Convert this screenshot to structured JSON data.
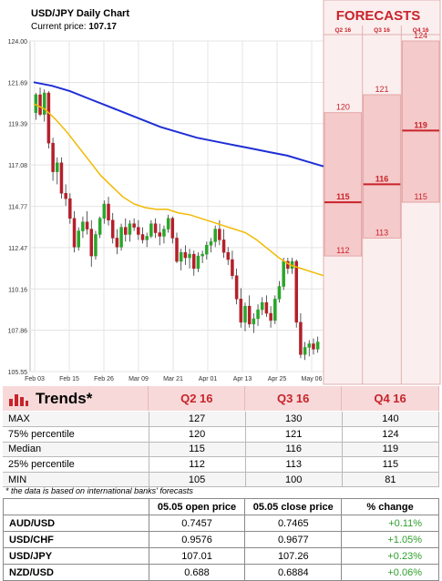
{
  "header": {
    "title": "USD/JPY Daily Chart",
    "price_label": "Current price:",
    "price_value": "107.17"
  },
  "forecast_panel": {
    "title": "FORECASTS",
    "columns": [
      "Q2 16",
      "Q3 16",
      "Q4 16"
    ],
    "values": [
      {
        "max": "120",
        "median": "115",
        "min": "112",
        "max_v": 120,
        "median_v": 115,
        "min_v": 112
      },
      {
        "max": "121",
        "median": "116",
        "min": "113",
        "max_v": 121,
        "median_v": 116,
        "min_v": 113
      },
      {
        "max": "124",
        "median": "119",
        "min": "115",
        "max_v": 124,
        "median_v": 119,
        "min_v": 115
      }
    ]
  },
  "chart_data": {
    "type": "candlestick",
    "title": "USD/JPY Daily Chart",
    "ylim": [
      105.55,
      124.0
    ],
    "y_ticks": [
      "124.00",
      "121.69",
      "119.39",
      "117.08",
      "114.77",
      "112.47",
      "110.16",
      "107.86",
      "105.55"
    ],
    "x_ticks": [
      "Feb 03",
      "Feb 15",
      "Feb 26",
      "Mar 09",
      "Mar 21",
      "Apr 01",
      "Apr 13",
      "Apr 25",
      "May 06"
    ],
    "candles": [
      [
        120.0,
        121.1,
        119.6,
        121.0
      ],
      [
        121.0,
        121.4,
        119.8,
        119.9
      ],
      [
        119.9,
        121.3,
        119.5,
        121.1
      ],
      [
        121.1,
        121.2,
        118.0,
        118.3
      ],
      [
        118.3,
        118.6,
        116.2,
        116.7
      ],
      [
        116.7,
        117.5,
        116.0,
        117.2
      ],
      [
        117.2,
        117.5,
        115.2,
        115.5
      ],
      [
        115.5,
        116.0,
        114.8,
        115.2
      ],
      [
        115.2,
        115.5,
        113.8,
        114.1
      ],
      [
        114.1,
        114.5,
        112.2,
        112.5
      ],
      [
        112.5,
        113.6,
        112.3,
        113.4
      ],
      [
        113.4,
        114.2,
        113.0,
        113.9
      ],
      [
        113.9,
        114.5,
        113.2,
        113.5
      ],
      [
        113.5,
        114.0,
        111.4,
        112.0
      ],
      [
        112.0,
        113.4,
        111.8,
        113.2
      ],
      [
        113.2,
        114.2,
        113.0,
        114.1
      ],
      [
        114.1,
        115.1,
        113.8,
        114.9
      ],
      [
        114.9,
        115.3,
        113.7,
        114.0
      ],
      [
        114.0,
        114.4,
        112.7,
        113.0
      ],
      [
        113.0,
        113.5,
        112.1,
        112.5
      ],
      [
        112.5,
        113.8,
        112.3,
        113.6
      ],
      [
        113.6,
        114.1,
        112.8,
        113.2
      ],
      [
        113.2,
        114.0,
        112.8,
        113.8
      ],
      [
        113.8,
        114.1,
        113.4,
        113.6
      ],
      [
        113.6,
        114.0,
        112.9,
        113.2
      ],
      [
        113.2,
        113.6,
        112.7,
        112.9
      ],
      [
        112.9,
        113.3,
        112.5,
        113.1
      ],
      [
        113.1,
        114.0,
        113.0,
        113.8
      ],
      [
        113.8,
        114.1,
        113.0,
        113.3
      ],
      [
        113.3,
        113.8,
        112.6,
        113.1
      ],
      [
        113.1,
        113.7,
        112.7,
        113.5
      ],
      [
        113.5,
        114.3,
        113.3,
        114.1
      ],
      [
        114.1,
        114.2,
        112.7,
        113.0
      ],
      [
        113.0,
        113.3,
        111.6,
        111.7
      ],
      [
        111.7,
        112.4,
        111.2,
        112.2
      ],
      [
        112.2,
        112.6,
        111.5,
        111.9
      ],
      [
        111.9,
        112.4,
        111.3,
        112.1
      ],
      [
        112.1,
        112.3,
        110.9,
        111.3
      ],
      [
        111.3,
        112.2,
        111.1,
        112.0
      ],
      [
        112.0,
        112.3,
        111.6,
        112.1
      ],
      [
        112.1,
        112.8,
        111.8,
        112.6
      ],
      [
        112.6,
        113.0,
        112.2,
        112.8
      ],
      [
        112.8,
        113.7,
        112.5,
        113.5
      ],
      [
        113.5,
        114.0,
        112.6,
        112.9
      ],
      [
        112.9,
        113.5,
        111.9,
        112.2
      ],
      [
        112.2,
        112.5,
        111.5,
        111.8
      ],
      [
        111.8,
        112.3,
        110.7,
        110.9
      ],
      [
        110.9,
        111.3,
        109.3,
        109.6
      ],
      [
        109.6,
        110.2,
        108.0,
        108.3
      ],
      [
        108.3,
        109.4,
        107.8,
        109.2
      ],
      [
        109.2,
        109.8,
        108.0,
        108.2
      ],
      [
        108.2,
        108.8,
        107.7,
        108.5
      ],
      [
        108.5,
        109.3,
        108.1,
        109.0
      ],
      [
        109.0,
        109.7,
        108.7,
        109.4
      ],
      [
        109.4,
        109.8,
        108.6,
        108.8
      ],
      [
        108.8,
        109.2,
        108.0,
        108.4
      ],
      [
        108.4,
        109.8,
        108.2,
        109.6
      ],
      [
        109.6,
        110.6,
        109.4,
        110.3
      ],
      [
        110.3,
        111.9,
        110.1,
        111.7
      ],
      [
        111.7,
        111.9,
        111.0,
        111.3
      ],
      [
        111.3,
        111.9,
        111.0,
        111.7
      ],
      [
        111.7,
        111.8,
        108.0,
        108.3
      ],
      [
        108.3,
        108.8,
        106.3,
        106.5
      ],
      [
        106.5,
        107.2,
        106.2,
        106.9
      ],
      [
        106.9,
        107.3,
        106.4,
        107.1
      ],
      [
        107.1,
        107.4,
        106.5,
        106.8
      ],
      [
        106.8,
        107.5,
        106.6,
        107.2
      ]
    ],
    "sma_short": [
      120.5,
      120.2,
      119.6,
      118.9,
      118.1,
      117.3,
      116.5,
      115.9,
      115.3,
      114.9,
      114.7,
      114.6,
      114.6,
      114.4,
      114.3,
      114.1,
      113.9,
      113.7,
      113.5,
      113.3,
      112.9,
      112.4,
      111.9,
      111.5,
      111.3,
      111.1,
      110.9
    ],
    "sma_long": [
      121.7,
      121.5,
      121.2,
      120.8,
      120.4,
      120.0,
      119.6,
      119.2,
      118.9,
      118.6,
      118.4,
      118.2,
      118.0,
      117.8,
      117.6,
      117.3,
      117.0
    ],
    "sma_colors": {
      "short": "#f2b900",
      "long": "#1f2fd4"
    },
    "candle_colors": {
      "up": "#2aa52a",
      "down": "#b3202a"
    }
  },
  "trends": {
    "title": "Trends*",
    "columns": [
      "Q2 16",
      "Q3 16",
      "Q4 16"
    ],
    "rows": [
      {
        "label": "MAX",
        "values": [
          "127",
          "130",
          "140"
        ]
      },
      {
        "label": "75% percentile",
        "values": [
          "120",
          "121",
          "124"
        ]
      },
      {
        "label": "Median",
        "values": [
          "115",
          "116",
          "119"
        ]
      },
      {
        "label": "25% percentile",
        "values": [
          "112",
          "113",
          "115"
        ]
      },
      {
        "label": "MIN",
        "values": [
          "105",
          "100",
          "81"
        ]
      }
    ],
    "note": "* the data is based on international banks' forecasts"
  },
  "fx_table": {
    "headers": [
      "",
      "05.05 open price",
      "05.05 close price",
      "% change"
    ],
    "rows": [
      {
        "pair": "AUD/USD",
        "open": "0.7457",
        "close": "0.7465",
        "change": "+0.11%"
      },
      {
        "pair": "USD/CHF",
        "open": "0.9576",
        "close": "0.9677",
        "change": "+1.05%"
      },
      {
        "pair": "USD/JPY",
        "open": "107.01",
        "close": "107.26",
        "change": "+0.23%"
      },
      {
        "pair": "NZD/USD",
        "open": "0.688",
        "close": "0.6884",
        "change": "+0.06%"
      }
    ]
  }
}
